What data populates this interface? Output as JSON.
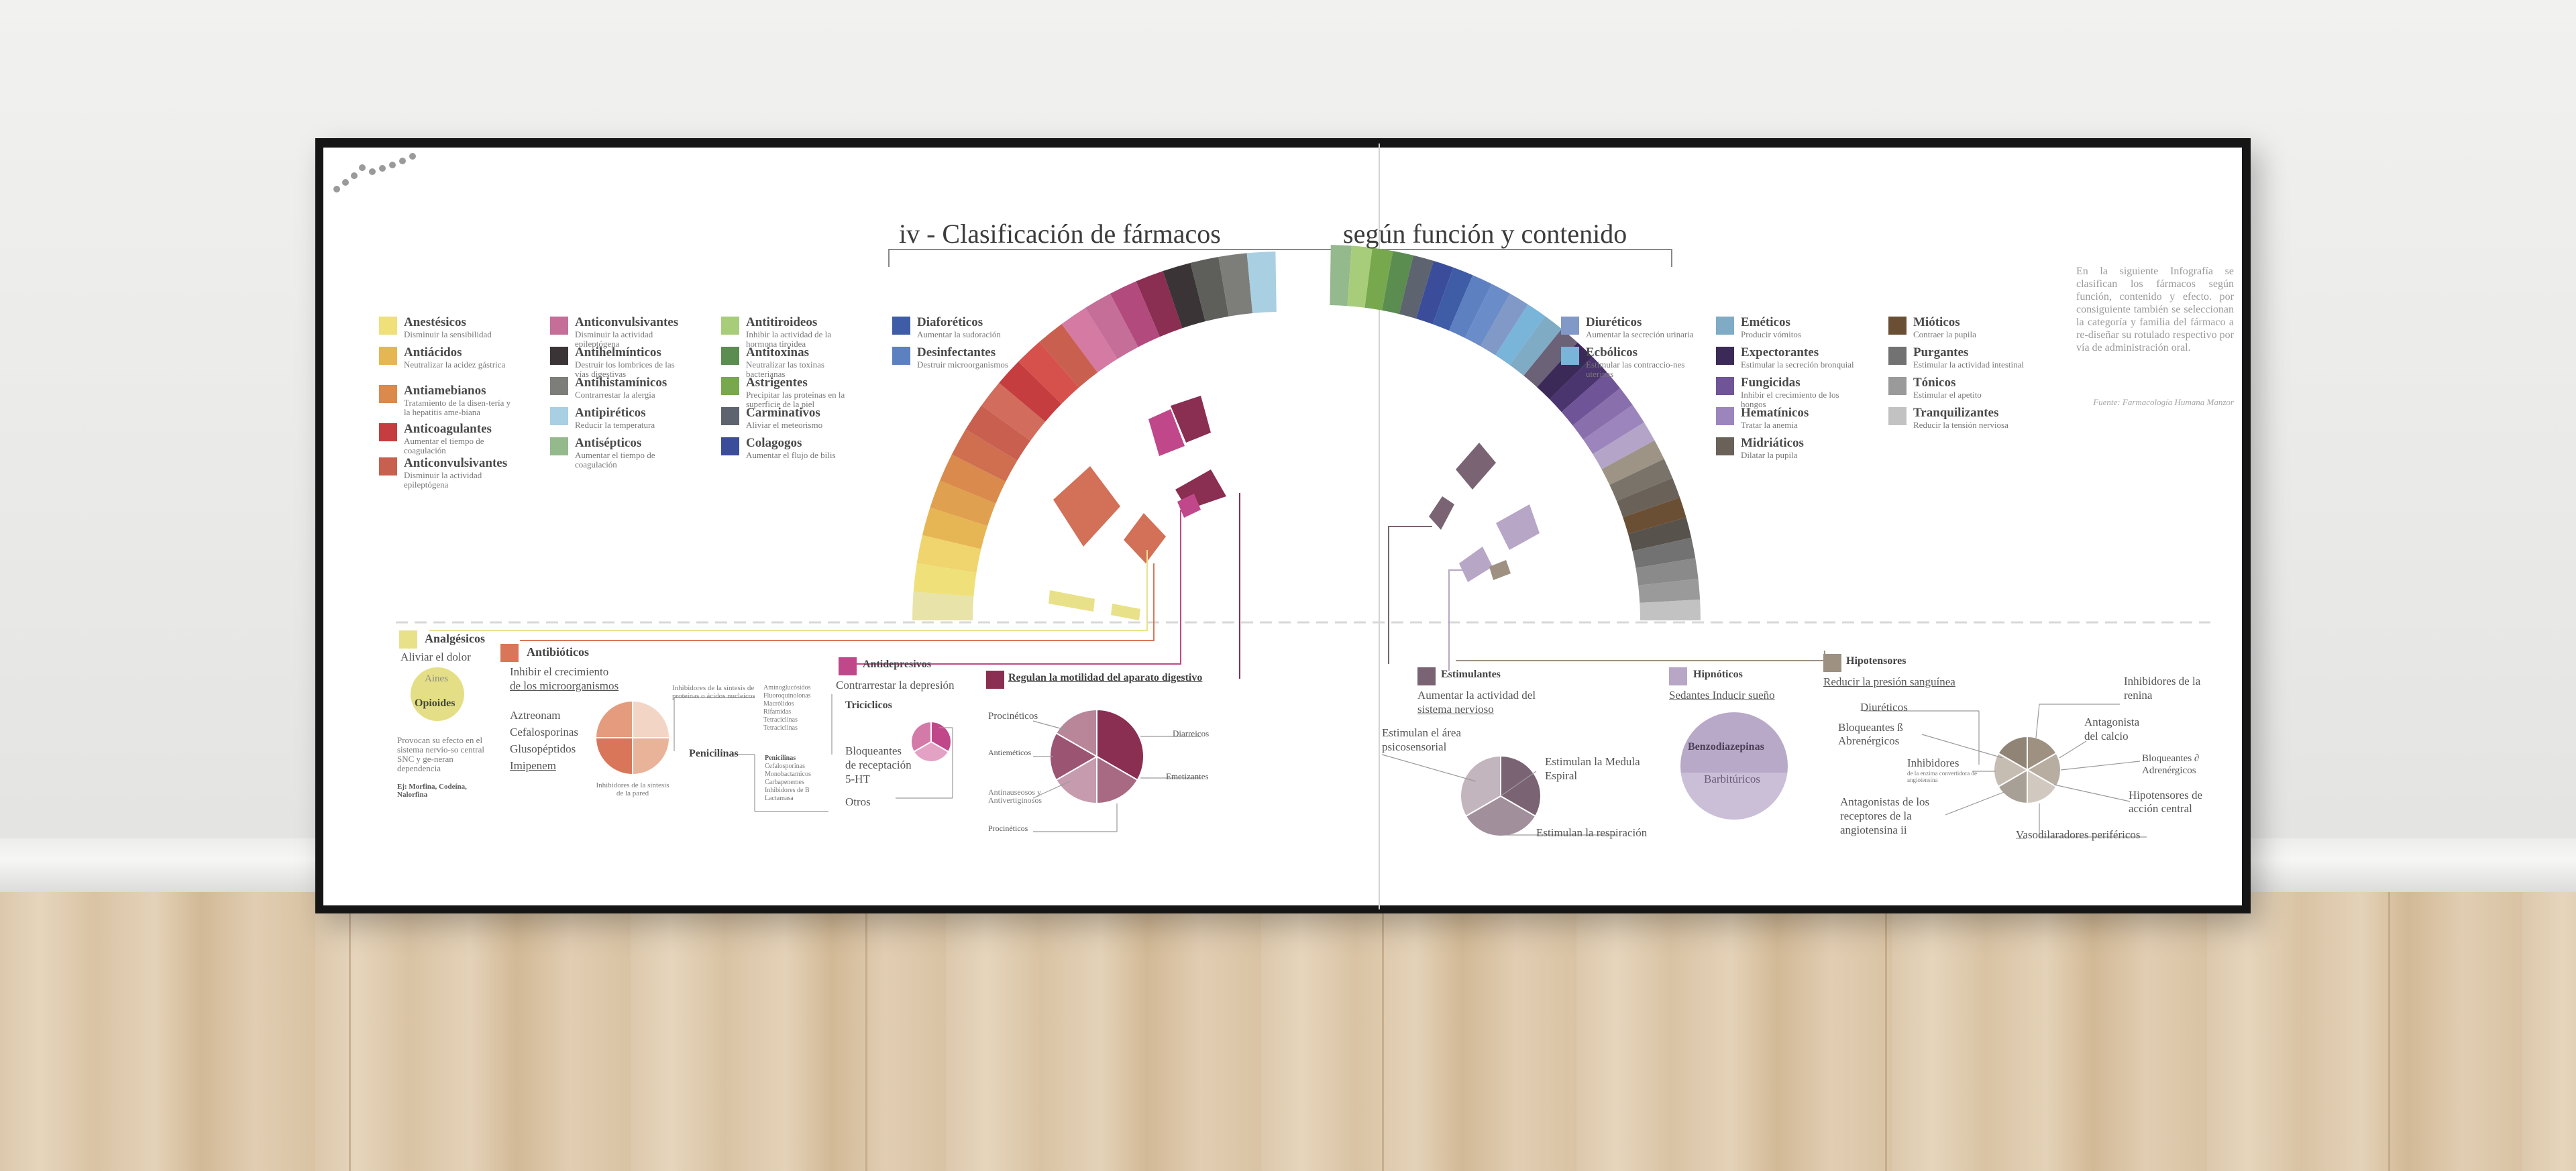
{
  "poster": {
    "title_left": "iv -  Clasificación de fármacos",
    "title_right": "según función y contenido",
    "intro": "En la siguiente Infografía se clasifican los fármacos según función, contenido y efecto. por consiguiente también se seleccionan la categoría y familia del fármaco a re-diseñar su rotulado respectivo por vía de administración oral.",
    "source": "Fuente: Farmacología Humana Manzor"
  },
  "colors": {
    "anestesicos": "#efe07a",
    "antiacidos": "#e7b654",
    "antiamebianos": "#d98a4c",
    "anticoagulantes": "#c53d3f",
    "anticonvulsivantes_red": "#c9604f",
    "anticonvulsivantes_pink": "#c46e98",
    "antihelminticos": "#3b3437",
    "antihistaminicos": "#7d7e7a",
    "antipireticos": "#a9cfe3",
    "antisepticos": "#93b98c",
    "antitiroideos": "#a8cd7a",
    "antitoxinas": "#5b8c50",
    "astrigentes": "#77a84d",
    "carminativos": "#5d6470",
    "colagogos": "#3b4d9a",
    "diaforeticos": "#3e5da6",
    "desinfectantes": "#5d80c0",
    "diureticos": "#8199c7",
    "ecbolicos": "#79b4d9",
    "emeticos": "#7fabc5",
    "expectorantes": "#3b2a58",
    "fungicidas": "#6f5497",
    "hematinicos": "#9c84bd",
    "midriaticos": "#6a6259",
    "mioticos": "#6b4f35",
    "purgantes": "#727272",
    "tonicos": "#9a9a9a",
    "tranquilizantes": "#c2c2c2"
  },
  "legend": [
    {
      "name": "Anestésicos",
      "desc": "Disminuir la sensibilidad",
      "color": "#efe07a"
    },
    {
      "name": "Antiácidos",
      "desc": "Neutralizar la acidez gástrica",
      "color": "#e7b654"
    },
    {
      "name": "Antiamebianos",
      "desc": "Tratamiento de la disen-tería y la hepatitis ame-biana",
      "color": "#d98a4c"
    },
    {
      "name": "Anticoagulantes",
      "desc": "Aumentar el tiempo de coagulación",
      "color": "#c53d3f"
    },
    {
      "name": "Anticonvulsivantes",
      "desc": "Disminuir la actividad epileptógena",
      "color": "#c9604f"
    },
    {
      "name": "Anticonvulsivantes",
      "desc": "Disminuir la actividad epileptógena",
      "color": "#c46e98"
    },
    {
      "name": "Antihelmínticos",
      "desc": "Destruir los lombrices de las vías digestivas",
      "color": "#3b3437"
    },
    {
      "name": "Antihistamínicos",
      "desc": "Contrarrestar la alergia",
      "color": "#7d7e7a"
    },
    {
      "name": "Antipiréticos",
      "desc": "Reducir la temperatura",
      "color": "#a9cfe3"
    },
    {
      "name": "Antisépticos",
      "desc": "Aumentar el tiempo de coagulación",
      "color": "#93b98c"
    },
    {
      "name": "Antitiroideos",
      "desc": "Inhibir la actividad de la hormona tiroidea",
      "color": "#a8cd7a"
    },
    {
      "name": "Antitoxinas",
      "desc": "Neutralizar las toxinas bacterianas",
      "color": "#5b8c50"
    },
    {
      "name": "Astrigentes",
      "desc": "Precipitar las proteínas en la superficie de la piel",
      "color": "#77a84d"
    },
    {
      "name": "Carminativos",
      "desc": "Aliviar el meteorismo",
      "color": "#5d6470"
    },
    {
      "name": "Colagogos",
      "desc": "Aumentar el flujo de bilis",
      "color": "#3b4d9a"
    },
    {
      "name": "Diaforéticos",
      "desc": "Aumentar la sudoración",
      "color": "#3e5da6"
    },
    {
      "name": "Desinfectantes",
      "desc": "Destruir microorganismos",
      "color": "#5d80c0"
    },
    {
      "name": "Diuréticos",
      "desc": "Aumentar la secreción urinaria",
      "color": "#8199c7"
    },
    {
      "name": "Ecbólicos",
      "desc": "Estimular las contraccio-nes uterinas",
      "color": "#79b4d9"
    },
    {
      "name": "Eméticos",
      "desc": "Producir vómitos",
      "color": "#7fabc5"
    },
    {
      "name": "Expectorantes",
      "desc": "Estimular la secreción bronquial",
      "color": "#3b2a58"
    },
    {
      "name": "Fungicidas",
      "desc": "Inhibir el crecimiento de los hongos",
      "color": "#6f5497"
    },
    {
      "name": "Hematínicos",
      "desc": "Tratar la anemia",
      "color": "#9c84bd"
    },
    {
      "name": "Midriáticos",
      "desc": "Dilatar la pupila",
      "color": "#6a6259"
    },
    {
      "name": "Mióticos",
      "desc": "Contraer la pupila",
      "color": "#6b4f35"
    },
    {
      "name": "Purgantes",
      "desc": "Estimular la actividad intestinal",
      "color": "#727272"
    },
    {
      "name": "Tónicos",
      "desc": "Estimular el apetito",
      "color": "#9a9a9a"
    },
    {
      "name": "Tranquilizantes",
      "desc": "Reducir la tensión nerviosa",
      "color": "#c2c2c2"
    }
  ],
  "left_arc_colors": [
    "#e8e3a9",
    "#efe07a",
    "#f0d46d",
    "#e7b654",
    "#dfa04f",
    "#d98a4c",
    "#cf6f50",
    "#c9604f",
    "#d26c5c",
    "#c53d3f",
    "#d6504c",
    "#c9604f",
    "#d47aa3",
    "#c46e98",
    "#b24a7d",
    "#8a2e52",
    "#3b3437",
    "#5e5f5b",
    "#7d7e7a",
    "#a9cfe3"
  ],
  "right_arc_colors": [
    "#93b98c",
    "#a8cd7a",
    "#77a84d",
    "#5b8c50",
    "#5d6470",
    "#3b4d9a",
    "#3e5da6",
    "#5d80c0",
    "#6a8cc8",
    "#8199c7",
    "#79b4d9",
    "#7fabc5",
    "#6b6277",
    "#3b2a58",
    "#4b356e",
    "#6f5497",
    "#8a6fad",
    "#9c84bd",
    "#b4a5c8",
    "#9e9486",
    "#7a736a",
    "#6a6259",
    "#6b4f35",
    "#57524b",
    "#727272",
    "#8a8a8a",
    "#9a9a9a",
    "#c2c2c2"
  ],
  "analgesicos": {
    "title": "Analgésicos",
    "subtitle": "Aliviar el dolor",
    "color": "#e9e18a",
    "aines": "Aines",
    "opioides": "Opioides",
    "note": "Provocan su efecto en el sistema nervio-so central SNC y ge-neran dependencia",
    "examples": "Ej: Morfina, Codeína, Nalorfina"
  },
  "antibioticos": {
    "title": "Antibióticos",
    "subtitle1": "Inhibir el crecimiento",
    "subtitle2": "de los microorganismos",
    "color": "#d9765a",
    "items": [
      "Aztreonam",
      "Cefalosporinas",
      "Glusopéptidos",
      "Imipenem"
    ],
    "wall": "Inhibidores de la síntesis de la pared",
    "protein": "Inhibidores de la síntesis de proteínas o ácidos nucleicos",
    "protein_list": [
      "Aminoglucósidos",
      "Fluoroquinolonas",
      "Macrólidos",
      "Rifamidas",
      "Tetraciclinas",
      "Tetraciclinas"
    ],
    "penicilinas": "Penicilinas",
    "penicilinas_list": [
      "Penicilinas",
      "Cefalosporinas",
      "Monobactamicos",
      "Carbapenemes",
      "Inhibidores de B Lactamasa"
    ]
  },
  "antidepresivos": {
    "title": "Antidepresivos",
    "subtitle": "Contrarrestar la depresión",
    "color": "#c0488a",
    "triciclicos": "Tricíclicos",
    "bloqueantes": [
      "Bloqueantes",
      "de receptación",
      "5-HT"
    ],
    "otros": "Otros"
  },
  "digestivo": {
    "title": "Regulan la motilidad del aparato digestivo",
    "color": "#8a2e52",
    "procineticos": "Procinéticos",
    "antiemeticos": "Antieméticos",
    "antinauseosos": "Antinauseosos y Antivertiginosos",
    "procineticos2": "Procinéticos",
    "diarreicos": "Diarreicos",
    "emetizantes": "Emetizantes"
  },
  "estimulantes": {
    "title": "Estimulantes",
    "subtitle1": "Aumentar la actividad del",
    "subtitle2": "sistema nervioso",
    "color": "#7a6473",
    "area": "Estimulan el área psicosensorial",
    "medula": "Estimulan la Medula Espiral",
    "resp": "Estimulan la respiración"
  },
  "hipnoticos": {
    "title": "Hipnóticos",
    "subtitle": "Sedantes Inducir sueño",
    "color": "#b7a6c6",
    "benzo": "Benzodiazepinas",
    "barbi": "Barbitúricos"
  },
  "hipotensores": {
    "title": "Hipotensores",
    "subtitle": "Reducir la presión sanguínea",
    "color": "#9e9182",
    "diureticos": "Diuréticos",
    "bloqueantes_b": "Bloqueantes ß Abrenérgicos",
    "inhibidores": "Inhibidores",
    "inhibidores_small": "de la enzima convertidora de angiotensina",
    "antagonistas": "Antagonistas de los receptores de la angiotensina ii",
    "renina": "Inhibidores de la renina",
    "calcio": "Antagonista del calcio",
    "bloq_a": "Bloqueantes ∂ Adrenérgicos",
    "central": "Hipotensores de acción central",
    "vaso": "Vasodilaradores periféricos"
  }
}
